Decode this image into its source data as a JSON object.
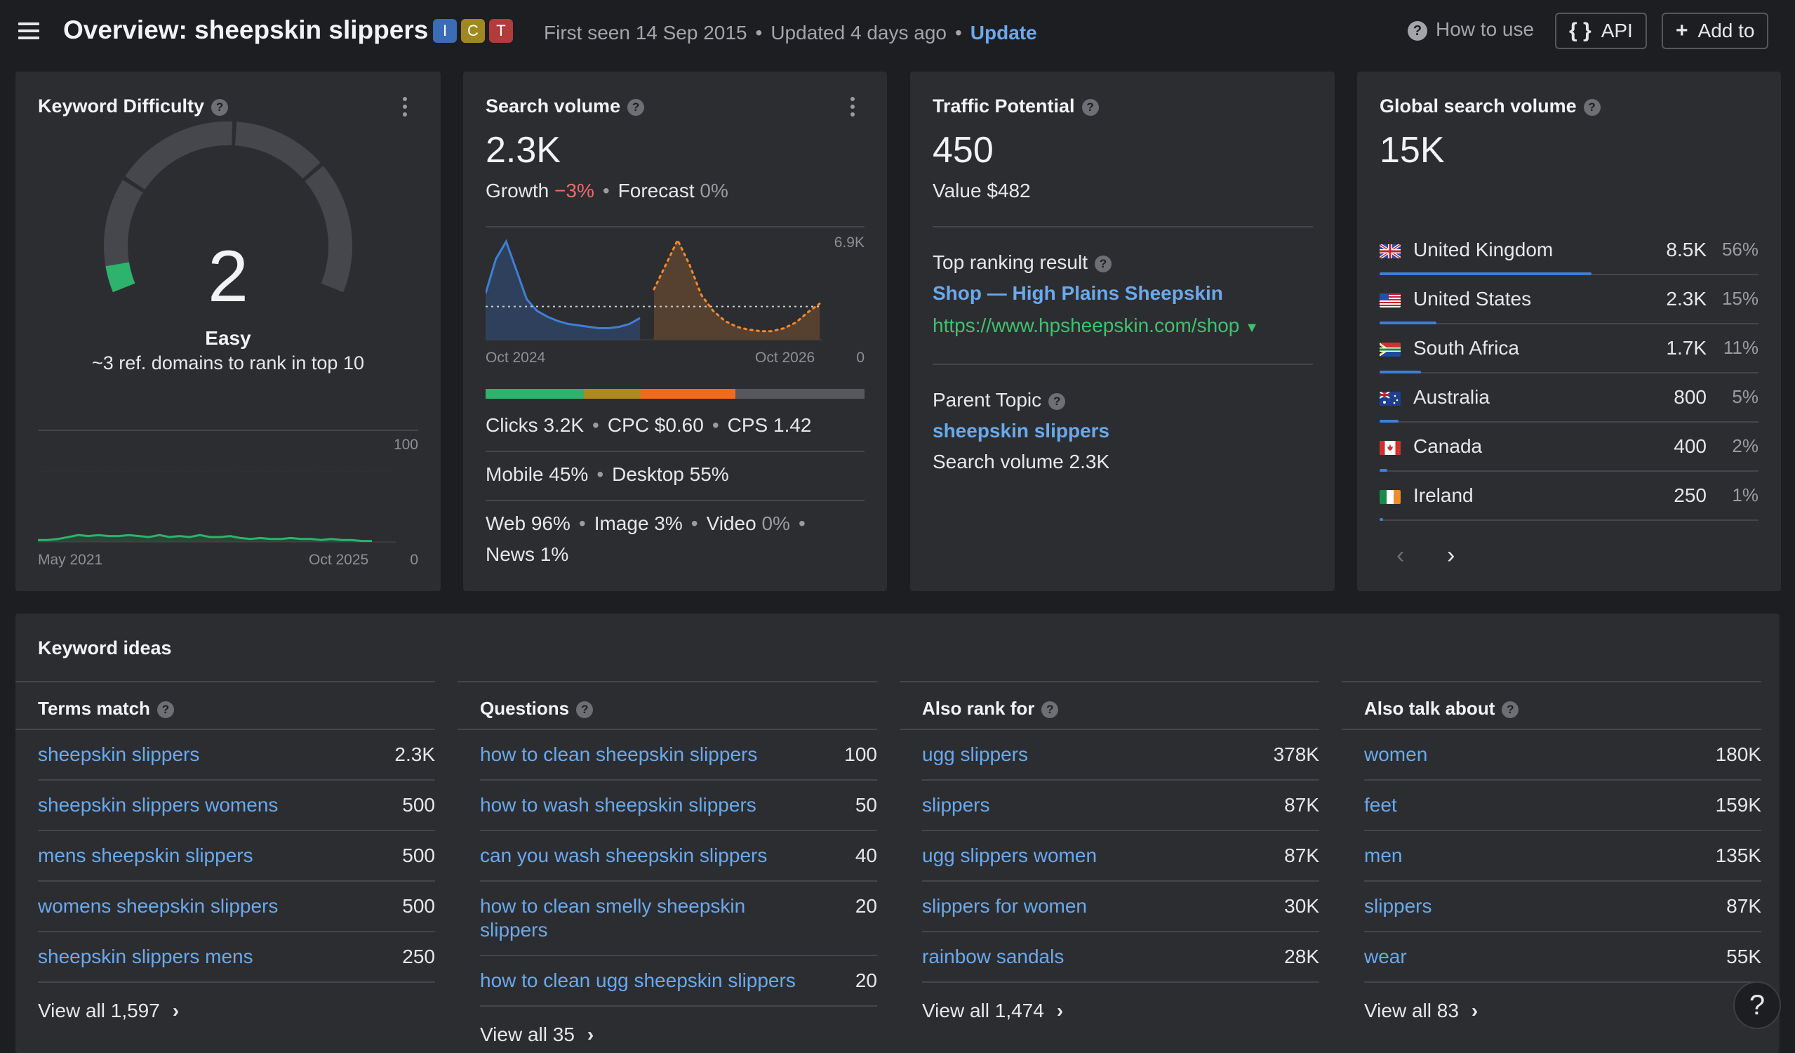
{
  "header": {
    "title": "Overview: sheepskin slippers",
    "badges": [
      "I",
      "C",
      "T"
    ],
    "first_seen": "First seen 14 Sep 2015",
    "updated": "Updated 4 days ago",
    "update_link": "Update",
    "how_to_use": "How to use",
    "api_label": "API",
    "add_to_label": "Add to"
  },
  "keyword_difficulty": {
    "title": "Keyword Difficulty",
    "value": "2",
    "label": "Easy",
    "ref_domains": "~3 ref. domains to rank in top 10",
    "chart": {
      "y_max_label": "100",
      "y_min_label": "0",
      "x_start": "May 2021",
      "x_end": "Oct 2025",
      "values": [
        2,
        2,
        3,
        5,
        7,
        6,
        7,
        6,
        6,
        7,
        6,
        5,
        7,
        5,
        6,
        5,
        7,
        5,
        5,
        6,
        4,
        3,
        4,
        3,
        3,
        4,
        3,
        3,
        2,
        3,
        2,
        2,
        1,
        1
      ]
    },
    "color": "#2db36b"
  },
  "search_volume": {
    "title": "Search volume",
    "value": "2.3K",
    "growth_label": "Growth",
    "growth_value": "−3%",
    "forecast_label": "Forecast",
    "forecast_value": "0%",
    "chart": {
      "y_max_label": "6.9K",
      "y_min_label": "0",
      "x_start": "Oct 2024",
      "x_end": "Oct 2026",
      "history": [
        3200,
        5600,
        6800,
        4800,
        2800,
        2000,
        1600,
        1300,
        1100,
        1000,
        900,
        800,
        800,
        900,
        1100,
        1500
      ],
      "forecast": [
        3500,
        5200,
        6900,
        5200,
        3100,
        2000,
        1300,
        900,
        700,
        600,
        600,
        800,
        1200,
        1900,
        2500
      ],
      "avg": 2300
    },
    "clicks_bar": [
      {
        "label": "organic",
        "share": 26,
        "color": "#2db36b"
      },
      {
        "label": "paid",
        "share": 15,
        "color": "#b0891e"
      },
      {
        "label": "other",
        "share": 25,
        "color": "#f26b1d"
      },
      {
        "label": "none",
        "share": 34,
        "color": "#55575c"
      }
    ],
    "clicks": "Clicks 3.2K",
    "cpc": "CPC $0.60",
    "cps": "CPS 1.42",
    "mobile": "Mobile 45%",
    "desktop": "Desktop 55%",
    "web": "Web 96%",
    "image": "Image 3%",
    "video_label": "Video",
    "video_value": "0%",
    "news": "News 1%"
  },
  "traffic_potential": {
    "title": "Traffic Potential",
    "value": "450",
    "value_label": "Value $482",
    "top_ranking_label": "Top ranking result",
    "top_result_title": "Shop — High Plains Sheepskin",
    "top_result_url": "https://www.hpsheepskin.com/shop",
    "parent_topic_label": "Parent Topic",
    "parent_topic": "sheepskin slippers",
    "parent_volume": "Search volume 2.3K"
  },
  "global_volume": {
    "title": "Global search volume",
    "value": "15K",
    "countries": [
      {
        "name": "United Kingdom",
        "value": "8.5K",
        "pct": "56%",
        "share": 56
      },
      {
        "name": "United States",
        "value": "2.3K",
        "pct": "15%",
        "share": 15
      },
      {
        "name": "South Africa",
        "value": "1.7K",
        "pct": "11%",
        "share": 11
      },
      {
        "name": "Australia",
        "value": "800",
        "pct": "5%",
        "share": 5
      },
      {
        "name": "Canada",
        "value": "400",
        "pct": "2%",
        "share": 2
      },
      {
        "name": "Ireland",
        "value": "250",
        "pct": "1%",
        "share": 1
      }
    ]
  },
  "keyword_ideas": {
    "title": "Keyword ideas",
    "columns": [
      {
        "header": "Terms match",
        "rows": [
          {
            "kw": "sheepskin slippers",
            "vol": "2.3K"
          },
          {
            "kw": "sheepskin slippers womens",
            "vol": "500"
          },
          {
            "kw": "mens sheepskin slippers",
            "vol": "500"
          },
          {
            "kw": "womens sheepskin slippers",
            "vol": "500"
          },
          {
            "kw": "sheepskin slippers mens",
            "vol": "250"
          }
        ],
        "view_all": "View all 1,597"
      },
      {
        "header": "Questions",
        "rows": [
          {
            "kw": "how to clean sheepskin slippers",
            "vol": "100"
          },
          {
            "kw": "how to wash sheepskin slippers",
            "vol": "50"
          },
          {
            "kw": "can you wash sheepskin slippers",
            "vol": "40"
          },
          {
            "kw": "how to clean smelly sheepskin slippers",
            "vol": "20"
          },
          {
            "kw": "how to clean ugg sheepskin slippers",
            "vol": "20"
          }
        ],
        "view_all": "View all 35"
      },
      {
        "header": "Also rank for",
        "rows": [
          {
            "kw": "ugg slippers",
            "vol": "378K"
          },
          {
            "kw": "slippers",
            "vol": "87K"
          },
          {
            "kw": "ugg slippers women",
            "vol": "87K"
          },
          {
            "kw": "slippers for women",
            "vol": "30K"
          },
          {
            "kw": "rainbow sandals",
            "vol": "28K"
          }
        ],
        "view_all": "View all 1,474"
      },
      {
        "header": "Also talk about",
        "rows": [
          {
            "kw": "women",
            "vol": "180K"
          },
          {
            "kw": "feet",
            "vol": "159K"
          },
          {
            "kw": "men",
            "vol": "135K"
          },
          {
            "kw": "slippers",
            "vol": "87K"
          },
          {
            "kw": "wear",
            "vol": "55K"
          }
        ],
        "view_all": "View all 83"
      }
    ]
  },
  "help_fab": "?"
}
